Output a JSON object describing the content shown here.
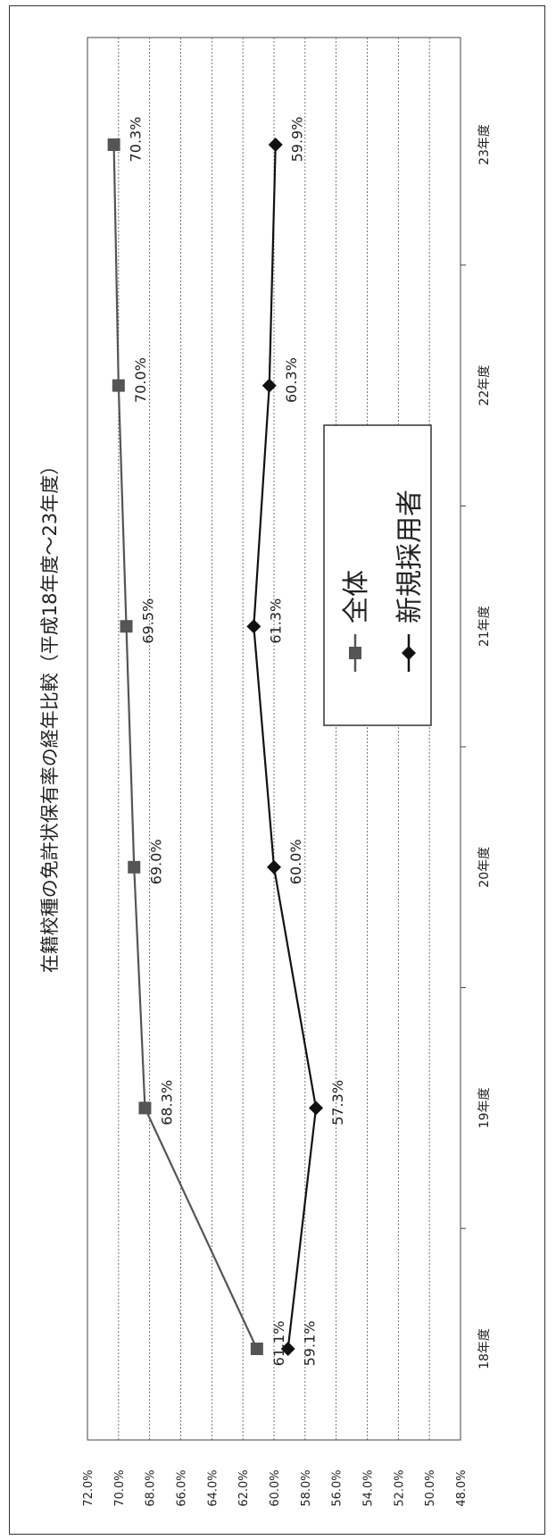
{
  "chart_data": {
    "type": "line",
    "orientation": "rotated-90-clockwise",
    "title": "在籍校種の免許状保有率の経年比較（平成18年度～23年度）",
    "xlabel": "",
    "ylabel": "",
    "categories": [
      "18年度",
      "19年度",
      "20年度",
      "21年度",
      "22年度",
      "23年度"
    ],
    "ylim": [
      48.0,
      72.0
    ],
    "y_ticks": [
      "48.0%",
      "50.0%",
      "52.0%",
      "54.0%",
      "56.0%",
      "58.0%",
      "60.0%",
      "62.0%",
      "64.0%",
      "66.0%",
      "68.0%",
      "70.0%",
      "72.0%"
    ],
    "grid": true,
    "legend_position": "center",
    "series": [
      {
        "name": "全体",
        "marker": "square",
        "color": "#555555",
        "values": [
          61.1,
          68.3,
          69.0,
          69.5,
          70.0,
          70.3
        ],
        "labels": [
          "61.1%",
          "68.3%",
          "69.0%",
          "69.5%",
          "70.0%",
          "70.3%"
        ]
      },
      {
        "name": "新規採用者",
        "marker": "diamond",
        "color": "#111111",
        "values": [
          59.1,
          57.3,
          60.0,
          61.3,
          60.3,
          59.9
        ],
        "labels": [
          "59.1%",
          "57.3%",
          "60.0%",
          "61.3%",
          "60.3%",
          "59.9%"
        ]
      }
    ]
  }
}
